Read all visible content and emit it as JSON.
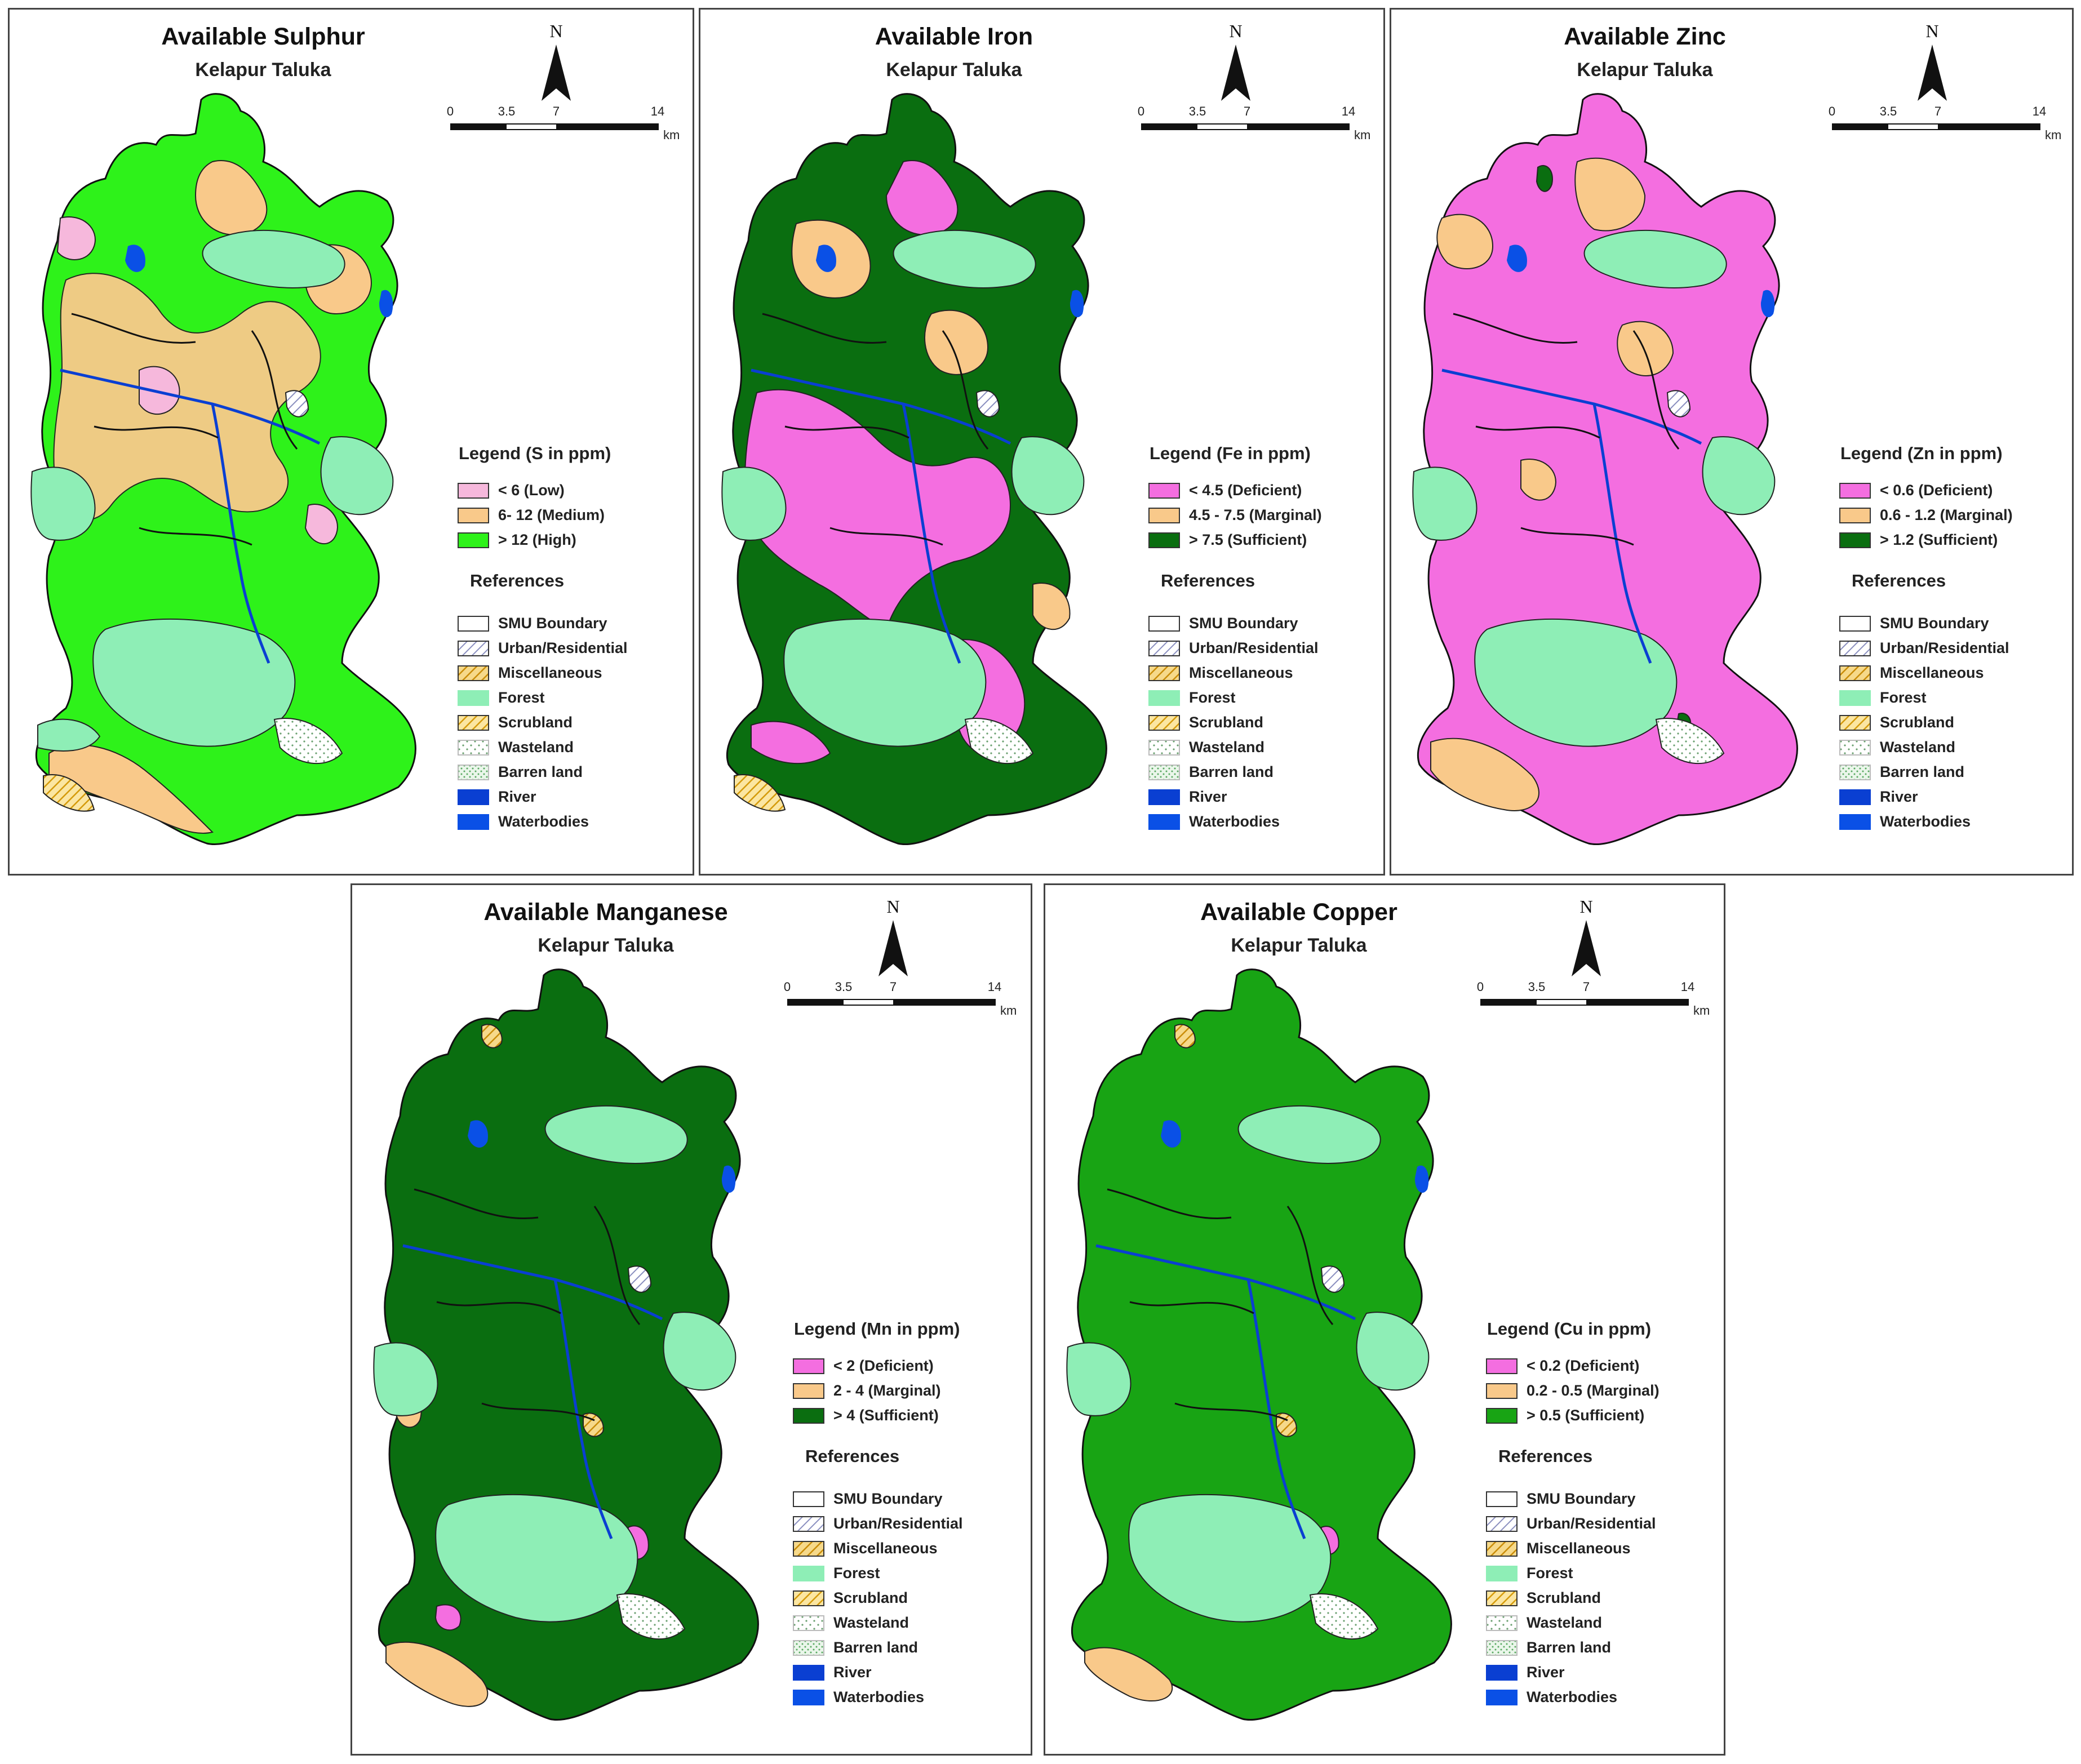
{
  "panels": [
    {
      "title": "Available Sulphur",
      "subtitle": "Kelapur Taluka",
      "legend_title": "Legend (S in ppm)",
      "classes": [
        {
          "label": "< 6 (Low)",
          "color": "#f6b8dc"
        },
        {
          "label": "6- 12 (Medium)",
          "color": "#f9c98a"
        },
        {
          "label": "> 12 (High)",
          "color": "#2ef21a"
        }
      ]
    },
    {
      "title": "Available Iron",
      "subtitle": "Kelapur Taluka",
      "legend_title": "Legend (Fe in ppm)",
      "classes": [
        {
          "label": "< 4.5 (Deficient)",
          "color": "#f46ee0"
        },
        {
          "label": "4.5 - 7.5 (Marginal)",
          "color": "#f9c98a"
        },
        {
          "label": "> 7.5 (Sufficient)",
          "color": "#0a6e10"
        }
      ]
    },
    {
      "title": "Available Zinc",
      "subtitle": "Kelapur Taluka",
      "legend_title": "Legend (Zn in ppm)",
      "classes": [
        {
          "label": "< 0.6 (Deficient)",
          "color": "#f46ee0"
        },
        {
          "label": "0.6 - 1.2 (Marginal)",
          "color": "#f9c98a"
        },
        {
          "label": "> 1.2 (Sufficient)",
          "color": "#0a6e10"
        }
      ]
    },
    {
      "title": "Available Manganese",
      "subtitle": "Kelapur Taluka",
      "legend_title": "Legend (Mn in ppm)",
      "classes": [
        {
          "label": "< 2 (Deficient)",
          "color": "#f46ee0"
        },
        {
          "label": "2 - 4 (Marginal)",
          "color": "#f9c98a"
        },
        {
          "label": "> 4 (Sufficient)",
          "color": "#0a6e10"
        }
      ]
    },
    {
      "title": "Available Copper",
      "subtitle": "Kelapur Taluka",
      "legend_title": "Legend (Cu in ppm)",
      "classes": [
        {
          "label": "< 0.2 (Deficient)",
          "color": "#f46ee0"
        },
        {
          "label": "0.2 - 0.5 (Marginal)",
          "color": "#f9c98a"
        },
        {
          "label": "> 0.5 (Sufficient)",
          "color": "#18a414"
        }
      ]
    }
  ],
  "north_label": "N",
  "scale": {
    "ticks": [
      "0",
      "3.5",
      "7",
      "14"
    ],
    "unit": "km"
  },
  "references_title": "References",
  "references": [
    {
      "label": "SMU Boundary",
      "style": "boundary"
    },
    {
      "label": "Urban/Residential",
      "style": "urban"
    },
    {
      "label": "Miscellaneous",
      "style": "misc"
    },
    {
      "label": "Forest",
      "style": "forest",
      "color": "#8eeeb6"
    },
    {
      "label": "Scrubland",
      "style": "scrub"
    },
    {
      "label": "Wasteland",
      "style": "waste"
    },
    {
      "label": "Barren land",
      "style": "barren"
    },
    {
      "label": "River",
      "style": "river",
      "color": "#0a3fd2"
    },
    {
      "label": "Waterbodies",
      "style": "water",
      "color": "#0a50e6"
    }
  ]
}
